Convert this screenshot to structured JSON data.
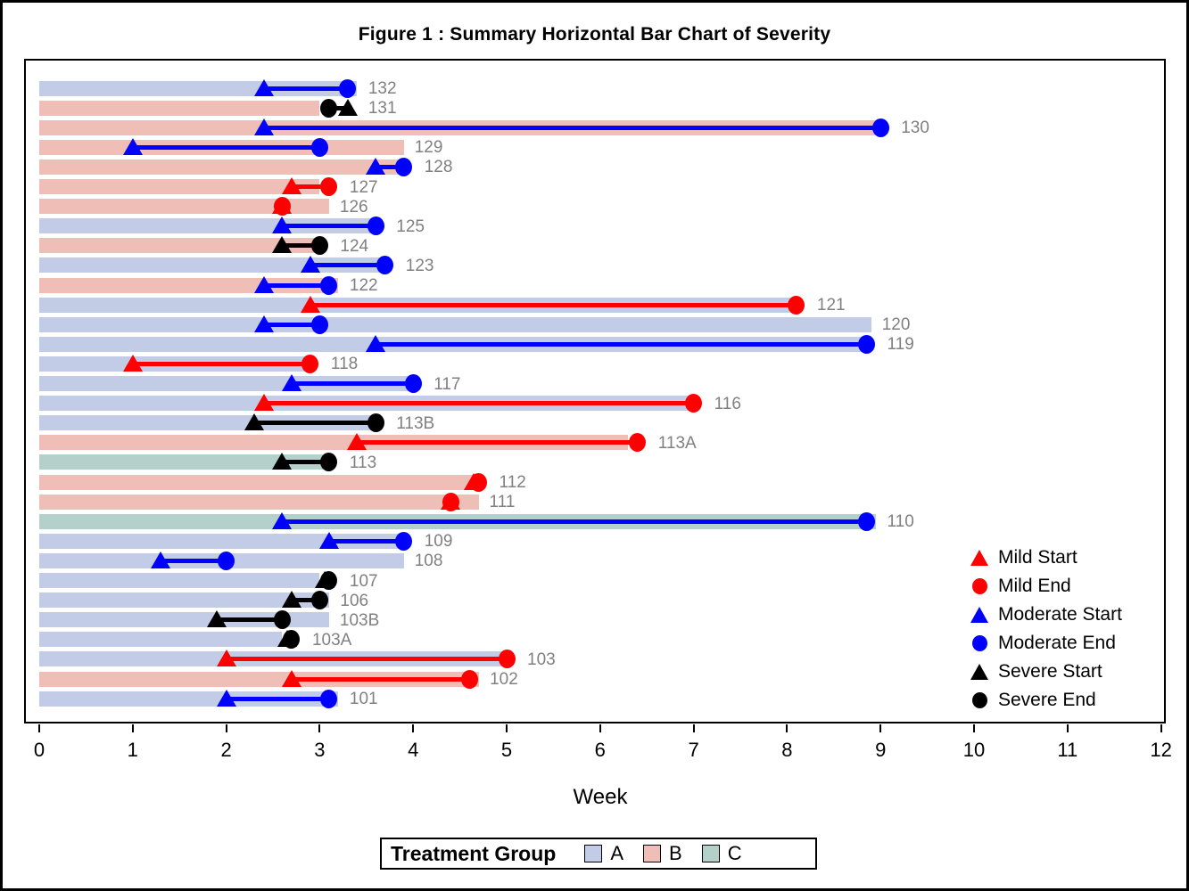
{
  "chart_data": {
    "type": "bar",
    "orientation": "horizontal",
    "title": "Figure 1 : Summary Horizontal Bar Chart of Severity",
    "xlabel": "Week",
    "xlim": [
      0,
      12
    ],
    "xticks": [
      0,
      1,
      2,
      3,
      4,
      5,
      6,
      7,
      8,
      9,
      10,
      11,
      12
    ],
    "grid": false,
    "group_colors": {
      "A": "#c3cce6",
      "B": "#efbeb7",
      "C": "#b4d0cb"
    },
    "severity_colors": {
      "mild": "#ff0000",
      "moderate": "#0000ff",
      "severe": "#000000"
    },
    "row_label_color": "#808080",
    "rows": [
      {
        "id": "132",
        "group": "A",
        "bar_weeks": 3.4,
        "severity": "moderate",
        "start": 2.4,
        "end": 3.3
      },
      {
        "id": "131",
        "group": "B",
        "bar_weeks": 3.0,
        "severity": "severe",
        "start": 3.3,
        "end": 3.1
      },
      {
        "id": "130",
        "group": "B",
        "bar_weeks": 9.0,
        "severity": "moderate",
        "start": 2.4,
        "end": 9.0
      },
      {
        "id": "129",
        "group": "B",
        "bar_weeks": 3.9,
        "severity": "moderate",
        "start": 1.0,
        "end": 3.0
      },
      {
        "id": "128",
        "group": "B",
        "bar_weeks": 3.9,
        "severity": "moderate",
        "start": 3.6,
        "end": 3.9
      },
      {
        "id": "127",
        "group": "B",
        "bar_weeks": 3.0,
        "severity": "mild",
        "start": 2.7,
        "end": 3.1
      },
      {
        "id": "126",
        "group": "B",
        "bar_weeks": 3.1,
        "severity": "mild",
        "start": 2.6,
        "end": 2.6
      },
      {
        "id": "125",
        "group": "A",
        "bar_weeks": 3.6,
        "severity": "moderate",
        "start": 2.6,
        "end": 3.6
      },
      {
        "id": "124",
        "group": "B",
        "bar_weeks": 3.0,
        "severity": "severe",
        "start": 2.6,
        "end": 3.0
      },
      {
        "id": "123",
        "group": "A",
        "bar_weeks": 3.75,
        "severity": "moderate",
        "start": 2.9,
        "end": 3.7
      },
      {
        "id": "122",
        "group": "B",
        "bar_weeks": 3.2,
        "severity": "moderate",
        "start": 2.4,
        "end": 3.1
      },
      {
        "id": "121",
        "group": "A",
        "bar_weeks": 8.1,
        "severity": "mild",
        "start": 2.9,
        "end": 8.1
      },
      {
        "id": "120",
        "group": "A",
        "bar_weeks": 8.9,
        "severity": "moderate",
        "start": 2.4,
        "end": 3.0
      },
      {
        "id": "119",
        "group": "A",
        "bar_weeks": 8.9,
        "severity": "moderate",
        "start": 3.6,
        "end": 8.85
      },
      {
        "id": "118",
        "group": "A",
        "bar_weeks": 2.95,
        "severity": "mild",
        "start": 1.0,
        "end": 2.9
      },
      {
        "id": "117",
        "group": "A",
        "bar_weeks": 4.05,
        "severity": "moderate",
        "start": 2.7,
        "end": 4.0
      },
      {
        "id": "116",
        "group": "A",
        "bar_weeks": 7.0,
        "severity": "mild",
        "start": 2.4,
        "end": 7.0
      },
      {
        "id": "113B",
        "group": "A",
        "bar_weeks": 3.55,
        "severity": "severe",
        "start": 2.3,
        "end": 3.6
      },
      {
        "id": "113A",
        "group": "B",
        "bar_weeks": 6.3,
        "severity": "mild",
        "start": 3.4,
        "end": 6.4
      },
      {
        "id": "113",
        "group": "C",
        "bar_weeks": 3.1,
        "severity": "severe",
        "start": 2.6,
        "end": 3.1
      },
      {
        "id": "112",
        "group": "B",
        "bar_weeks": 4.75,
        "severity": "mild",
        "start": 4.65,
        "end": 4.7
      },
      {
        "id": "111",
        "group": "B",
        "bar_weeks": 4.7,
        "severity": "mild",
        "start": 4.4,
        "end": 4.4
      },
      {
        "id": "110",
        "group": "C",
        "bar_weeks": 8.95,
        "severity": "moderate",
        "start": 2.6,
        "end": 8.85
      },
      {
        "id": "109",
        "group": "A",
        "bar_weeks": 3.9,
        "severity": "moderate",
        "start": 3.1,
        "end": 3.9
      },
      {
        "id": "108",
        "group": "A",
        "bar_weeks": 3.9,
        "severity": "moderate",
        "start": 1.3,
        "end": 2.0
      },
      {
        "id": "107",
        "group": "A",
        "bar_weeks": 3.0,
        "severity": "severe",
        "start": 3.05,
        "end": 3.1
      },
      {
        "id": "106",
        "group": "A",
        "bar_weeks": 3.1,
        "severity": "severe",
        "start": 2.7,
        "end": 3.0
      },
      {
        "id": "103B",
        "group": "A",
        "bar_weeks": 3.1,
        "severity": "severe",
        "start": 1.9,
        "end": 2.6
      },
      {
        "id": "103A",
        "group": "A",
        "bar_weeks": 2.6,
        "severity": "severe",
        "start": 2.65,
        "end": 2.7
      },
      {
        "id": "103",
        "group": "A",
        "bar_weeks": 4.95,
        "severity": "mild",
        "start": 2.0,
        "end": 5.0
      },
      {
        "id": "102",
        "group": "B",
        "bar_weeks": 4.7,
        "severity": "mild",
        "start": 2.7,
        "end": 4.6
      },
      {
        "id": "101",
        "group": "A",
        "bar_weeks": 3.2,
        "severity": "moderate",
        "start": 2.0,
        "end": 3.1
      }
    ],
    "marker_legend": [
      {
        "label": "Mild Start",
        "shape": "triangle",
        "color": "#ff0000"
      },
      {
        "label": "Mild End",
        "shape": "circle",
        "color": "#ff0000"
      },
      {
        "label": "Moderate Start",
        "shape": "triangle",
        "color": "#0000ff"
      },
      {
        "label": "Moderate End",
        "shape": "circle",
        "color": "#0000ff"
      },
      {
        "label": "Severe Start",
        "shape": "triangle",
        "color": "#000000"
      },
      {
        "label": "Severe End",
        "shape": "circle",
        "color": "#000000"
      }
    ],
    "group_legend": {
      "title": "Treatment Group",
      "items": [
        {
          "label": "A",
          "color": "#c3cce6"
        },
        {
          "label": "B",
          "color": "#efbeb7"
        },
        {
          "label": "C",
          "color": "#b4d0cb"
        }
      ]
    }
  }
}
